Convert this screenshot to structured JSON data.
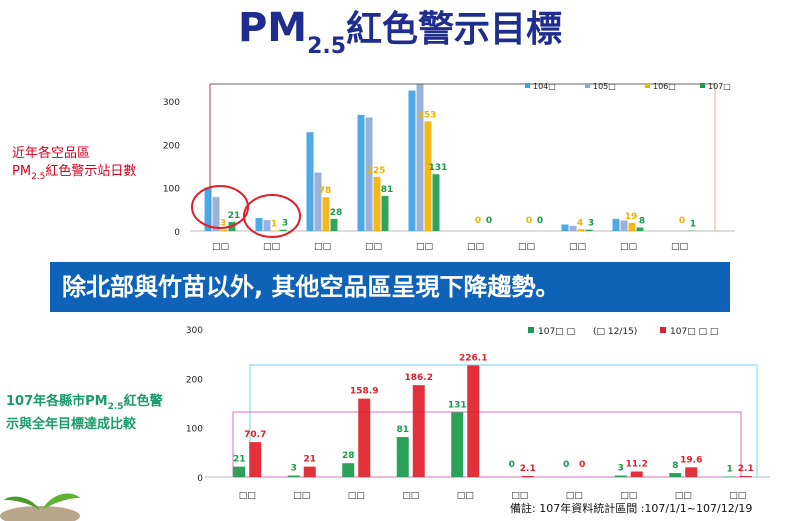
{
  "title": {
    "main": "PM",
    "sub": "2.5",
    "rest": "紅色警示目標"
  },
  "side_note_1": {
    "line1": "近年各空品區",
    "line2_prefix": "PM",
    "line2_sub": "2.5",
    "line2_rest": "紅色警示站日數"
  },
  "side_note_2": {
    "line1_prefix": "107年各縣市PM",
    "line1_sub": "2.5",
    "line1_rest": "紅色警",
    "line2": "示與全年目標達成比較"
  },
  "banner": {
    "text": "除北部與竹苗以外, 其他空品區呈現下降趨勢。"
  },
  "footer": {
    "text": "備註: 107年資料統計區間 :107/1/1~107/12/19"
  },
  "colors": {
    "y104": "#3aa0e6",
    "y105": "#8fa8d8",
    "y106": "#f2b100",
    "y107": "#1a9a4a",
    "target": "#e0202a",
    "banner": "#0e63b9",
    "title": "#1f2d8f"
  },
  "chart_data": [
    {
      "type": "bar",
      "categories": [
        "□□",
        "□□",
        "□□",
        "□□",
        "□□",
        "□□",
        "□□",
        "□□",
        "□□",
        "□□"
      ],
      "series": [
        {
          "name": "104□",
          "values": [
            100,
            30,
            228,
            268,
            324,
            null,
            null,
            15,
            28,
            null
          ]
        },
        {
          "name": "105□",
          "values": [
            78,
            25,
            135,
            262,
            338,
            null,
            null,
            12,
            24,
            null
          ]
        },
        {
          "name": "106□",
          "values": [
            3,
            1,
            78,
            125,
            253,
            0,
            0,
            4,
            19,
            0
          ]
        },
        {
          "name": "107□",
          "values": [
            21,
            3,
            28,
            81,
            131,
            0,
            0,
            3,
            8,
            1
          ]
        }
      ],
      "data_labels_series": [
        "106□",
        "107□"
      ],
      "yticks": [
        0,
        100,
        200,
        300
      ],
      "ylim": [
        0,
        340
      ],
      "legend": "top-right"
    },
    {
      "type": "bar",
      "categories": [
        "□□",
        "□□",
        "□□",
        "□□",
        "□□",
        "□□",
        "□□",
        "□□",
        "□□",
        "□□"
      ],
      "series": [
        {
          "name": "107□ □",
          "values": [
            21,
            3,
            28,
            81,
            131,
            0,
            0,
            3,
            8,
            1
          ]
        },
        {
          "name": "107□ □ □",
          "values": [
            70.7,
            21,
            158.9,
            186.2,
            226.1,
            2.1,
            0,
            11.2,
            19.6,
            2.1
          ]
        }
      ],
      "legend_note": "(□ 12/15)",
      "yticks": [
        0,
        100,
        200,
        300
      ],
      "ylim": [
        0,
        300
      ],
      "legend": "top-right"
    }
  ]
}
